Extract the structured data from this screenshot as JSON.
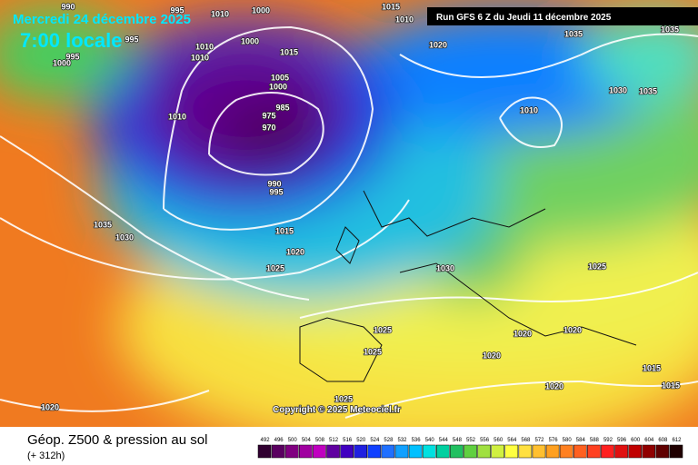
{
  "header": {
    "date": "Mercredi 24 décembre 2025",
    "time": "7:00 locale",
    "run": "Run GFS 6 Z du Jeudi 11 décembre 2025"
  },
  "map": {
    "copyright": "Copyright © 2025 Meteociel.fr",
    "isobar_labels": [
      990,
      995,
      1010,
      1000,
      1015,
      1010,
      1035,
      995,
      1010,
      1000,
      1015,
      1010,
      1000,
      995,
      1020,
      1035,
      1030,
      1035,
      1005,
      1000,
      985,
      975,
      970,
      1010,
      1010,
      990,
      995,
      1035,
      1030,
      1015,
      1020,
      1025,
      1030,
      1025,
      1025,
      1020,
      1020,
      1025,
      1020,
      1015,
      1015,
      1020,
      1020,
      1025
    ]
  },
  "footer": {
    "title": "Géop. Z500 & pression au sol",
    "lead": "(+ 312h)",
    "scale": [
      492,
      496,
      500,
      504,
      508,
      512,
      516,
      520,
      524,
      528,
      532,
      536,
      540,
      544,
      548,
      552,
      556,
      560,
      564,
      568,
      572,
      576,
      580,
      584,
      588,
      592,
      596,
      600,
      604,
      608,
      612
    ]
  }
}
